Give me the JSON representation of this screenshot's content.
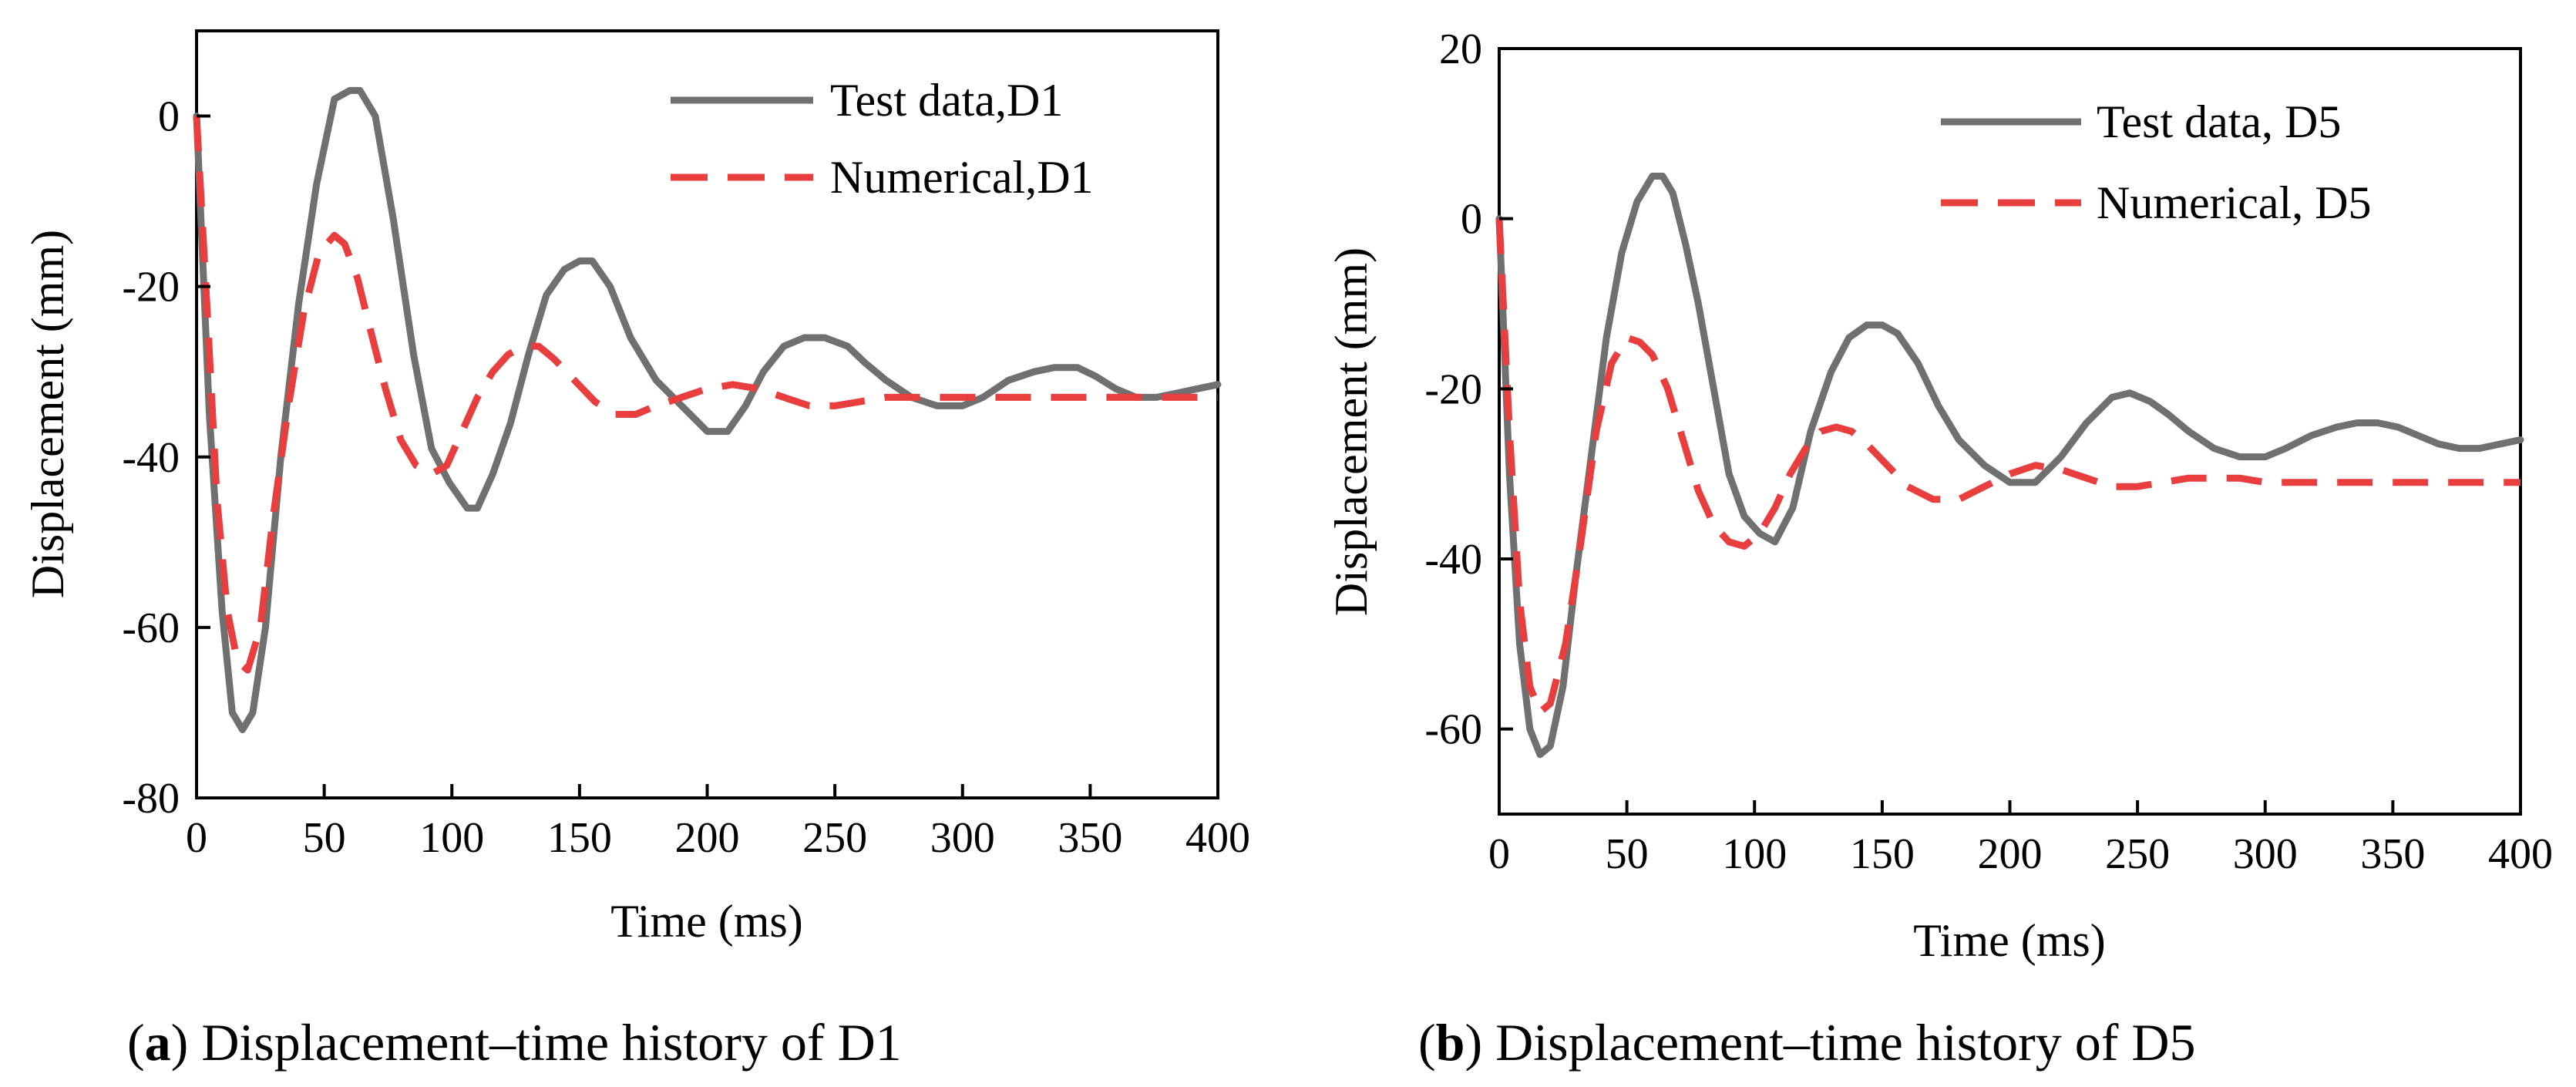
{
  "chart_data": [
    {
      "id": "a",
      "type": "line",
      "caption_letter": "a",
      "caption_text": "Displacement–time history of D1",
      "xlabel": "Time (ms)",
      "ylabel": "Displacement (mm)",
      "xlim": [
        0,
        400
      ],
      "ylim": [
        -80,
        10
      ],
      "xticks": [
        0,
        50,
        100,
        150,
        200,
        250,
        300,
        350,
        400
      ],
      "yticks": [
        0,
        -20,
        -40,
        -60,
        -80
      ],
      "legend_position": "top-right",
      "series": [
        {
          "name": "Test data,D1",
          "color": "#707070",
          "style": "solid",
          "x": [
            0,
            5,
            10,
            14,
            18,
            22,
            27,
            33,
            40,
            47,
            54,
            60,
            64,
            70,
            77,
            85,
            92,
            99,
            106,
            110,
            116,
            123,
            130,
            137,
            144,
            150,
            155,
            162,
            170,
            180,
            190,
            200,
            208,
            215,
            222,
            230,
            238,
            246,
            255,
            262,
            270,
            280,
            290,
            300,
            308,
            318,
            328,
            336,
            345,
            352,
            360,
            368,
            376,
            384,
            392,
            400
          ],
          "values": [
            0,
            -35,
            -58,
            -70,
            -72,
            -70,
            -60,
            -40,
            -22,
            -8,
            2,
            3,
            3,
            0,
            -12,
            -28,
            -39,
            -43,
            -46,
            -46,
            -42,
            -36,
            -28,
            -21,
            -18,
            -17,
            -17,
            -20,
            -26,
            -31,
            -34,
            -37,
            -37,
            -34,
            -30,
            -27,
            -26,
            -26,
            -27,
            -29,
            -31,
            -33,
            -34,
            -34,
            -33,
            -31,
            -30,
            -29.5,
            -29.5,
            -30.5,
            -32,
            -33,
            -33,
            -32.5,
            -32,
            -31.5
          ]
        },
        {
          "name": "Numerical,D1",
          "color": "#e83e3e",
          "style": "dashed",
          "x": [
            0,
            4,
            8,
            12,
            16,
            20,
            25,
            30,
            36,
            42,
            48,
            54,
            58,
            63,
            68,
            74,
            80,
            86,
            92,
            98,
            104,
            110,
            116,
            122,
            128,
            134,
            140,
            148,
            156,
            164,
            172,
            180,
            190,
            200,
            210,
            220,
            230,
            240,
            250,
            260,
            270,
            280,
            290,
            300,
            320,
            340,
            360,
            380,
            400
          ],
          "values": [
            0,
            -22,
            -45,
            -58,
            -64,
            -65,
            -60,
            -47,
            -34,
            -23,
            -16,
            -14,
            -15,
            -19,
            -25,
            -32,
            -38,
            -41,
            -42,
            -41,
            -37,
            -33,
            -30,
            -28,
            -27,
            -27,
            -28.5,
            -31,
            -33.5,
            -35,
            -35,
            -34,
            -33,
            -32,
            -31.5,
            -32,
            -33,
            -34,
            -34,
            -33.5,
            -33,
            -33,
            -33,
            -33,
            -33,
            -33,
            -33,
            -33,
            -33
          ]
        }
      ]
    },
    {
      "id": "b",
      "type": "line",
      "caption_letter": "b",
      "caption_text": "Displacement–time history of D5",
      "xlabel": "Time (ms)",
      "ylabel": "Displacement (mm)",
      "xlim": [
        0,
        400
      ],
      "ylim": [
        -70,
        20
      ],
      "xticks": [
        0,
        50,
        100,
        150,
        200,
        250,
        300,
        350,
        400
      ],
      "yticks": [
        20,
        0,
        -20,
        -40,
        -60
      ],
      "legend_position": "top-right",
      "series": [
        {
          "name": "Test data, D5",
          "color": "#707070",
          "style": "solid",
          "x": [
            0,
            4,
            8,
            12,
            16,
            20,
            25,
            30,
            36,
            42,
            48,
            54,
            60,
            64,
            68,
            73,
            78,
            84,
            90,
            96,
            102,
            108,
            115,
            122,
            130,
            137,
            144,
            150,
            156,
            164,
            172,
            180,
            190,
            200,
            210,
            220,
            230,
            240,
            247,
            255,
            262,
            270,
            280,
            290,
            300,
            308,
            318,
            328,
            336,
            344,
            352,
            360,
            368,
            376,
            384,
            392,
            400
          ],
          "values": [
            0,
            -30,
            -50,
            -60,
            -63,
            -62,
            -55,
            -42,
            -28,
            -14,
            -4,
            2,
            5,
            5,
            3,
            -3,
            -10,
            -20,
            -30,
            -35,
            -37,
            -38,
            -34,
            -25,
            -18,
            -14,
            -12.5,
            -12.5,
            -13.5,
            -17,
            -22,
            -26,
            -29,
            -31,
            -31,
            -28,
            -24,
            -21,
            -20.5,
            -21.5,
            -23,
            -25,
            -27,
            -28,
            -28,
            -27,
            -25.5,
            -24.5,
            -24,
            -24,
            -24.5,
            -25.5,
            -26.5,
            -27,
            -27,
            -26.5,
            -26
          ]
        },
        {
          "name": "Numerical, D5",
          "color": "#e83e3e",
          "style": "dashed",
          "x": [
            0,
            4,
            8,
            12,
            16,
            20,
            26,
            32,
            38,
            44,
            50,
            55,
            60,
            66,
            72,
            78,
            84,
            90,
            96,
            102,
            108,
            114,
            120,
            126,
            132,
            138,
            144,
            152,
            160,
            170,
            180,
            190,
            200,
            210,
            220,
            230,
            240,
            250,
            260,
            270,
            280,
            290,
            300,
            320,
            340,
            360,
            380,
            400
          ],
          "values": [
            0,
            -25,
            -45,
            -55,
            -58,
            -57,
            -50,
            -38,
            -25,
            -17,
            -14,
            -14.5,
            -16,
            -20,
            -26,
            -32,
            -36,
            -38,
            -38.5,
            -37,
            -34,
            -30,
            -27,
            -25,
            -24.5,
            -25,
            -26.5,
            -29,
            -31.5,
            -33,
            -33,
            -31.5,
            -30,
            -29,
            -29.5,
            -30.5,
            -31.5,
            -31.5,
            -31,
            -30.5,
            -30.5,
            -30.5,
            -31,
            -31,
            -31,
            -31,
            -31,
            -31
          ]
        }
      ]
    }
  ]
}
